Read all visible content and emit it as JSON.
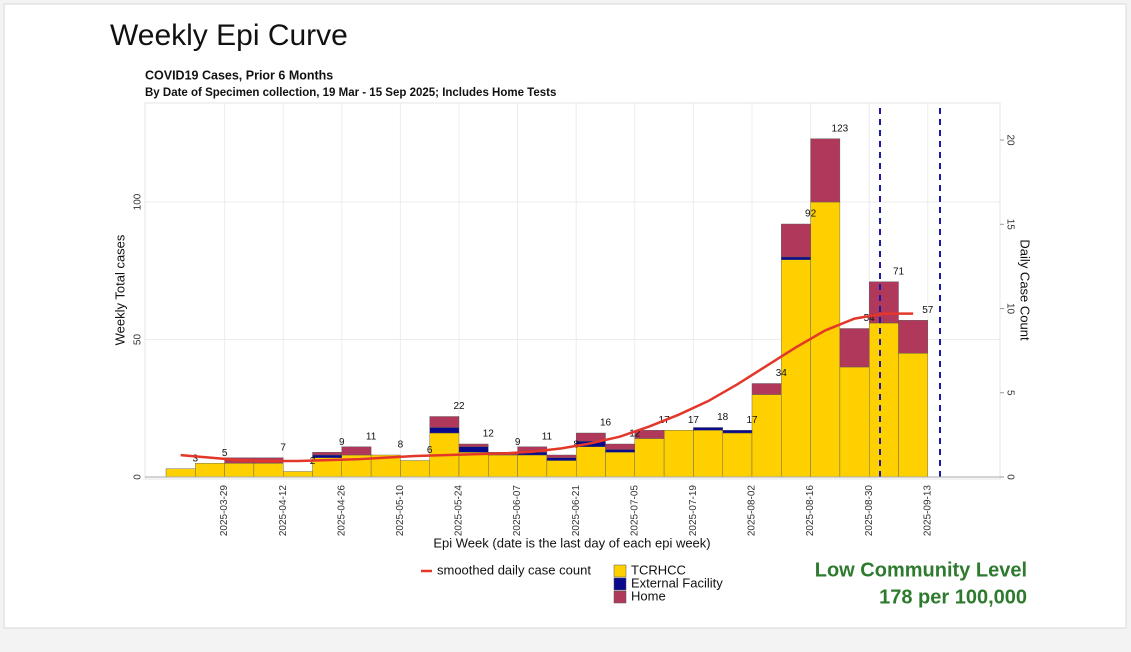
{
  "heading": "Weekly Epi Curve",
  "chart_data": {
    "type": "bar",
    "stacked": true,
    "title": "COVID19 Cases, Prior 6 Months",
    "subtitle": "By Date of Specimen collection, 19 Mar - 15 Sep 2025; Includes Home Tests",
    "x_label": "Epi Week (date is the last day of each epi week)",
    "y_label": "Weekly Total cases",
    "y2_label": "Daily Case Count",
    "categories": [
      null,
      "2025-03-29",
      null,
      "2025-04-12",
      null,
      "2025-04-26",
      null,
      "2025-05-10",
      null,
      "2025-05-24",
      null,
      "2025-06-07",
      null,
      "2025-06-21",
      null,
      "2025-07-05",
      null,
      "2025-07-19",
      null,
      "2025-08-02",
      null,
      "2025-08-16",
      null,
      "2025-08-30",
      null,
      "2025-09-13"
    ],
    "series": [
      {
        "name": "TCRHCC",
        "color": "#ffd000",
        "values": [
          3,
          5,
          5,
          5,
          2,
          7,
          8,
          8,
          6,
          16,
          9,
          8,
          8,
          6,
          11,
          9,
          14,
          17,
          17,
          16,
          30,
          79,
          100,
          40,
          56,
          45
        ]
      },
      {
        "name": "External Facility",
        "color": "#0a0a8c",
        "values": [
          0,
          0,
          0,
          0,
          0,
          1,
          0,
          0,
          0,
          2,
          2,
          0,
          1,
          1,
          2,
          1,
          0,
          0,
          1,
          1,
          0,
          1,
          0,
          0,
          0,
          0
        ]
      },
      {
        "name": "Home",
        "color": "#b0385a",
        "values": [
          0,
          0,
          2,
          2,
          0,
          1,
          3,
          0,
          0,
          4,
          1,
          1,
          2,
          1,
          3,
          2,
          3,
          0,
          0,
          0,
          4,
          12,
          23,
          14,
          15,
          12
        ]
      },
      {
        "name": "smoothed daily case count",
        "type": "line",
        "axis": "y2",
        "color": "#e3372a",
        "values": [
          1.3,
          1.15,
          1.0,
          0.95,
          0.95,
          1.0,
          1.05,
          1.15,
          1.25,
          1.3,
          1.35,
          1.4,
          1.5,
          1.7,
          2.0,
          2.4,
          3.0,
          3.7,
          4.5,
          5.5,
          6.6,
          7.7,
          8.7,
          9.4,
          9.7,
          9.7
        ]
      }
    ],
    "totals": [
      3,
      5,
      null,
      7,
      2,
      9,
      11,
      8,
      6,
      22,
      12,
      9,
      11,
      8,
      16,
      12,
      17,
      17,
      18,
      17,
      34,
      92,
      123,
      54,
      71,
      57
    ],
    "ylim": [
      0,
      136
    ],
    "yticks": [
      0,
      50,
      100
    ],
    "y2lim": [
      0,
      22.2
    ],
    "y2ticks": [
      0,
      5,
      10,
      15,
      20
    ],
    "grid": true
  },
  "status": {
    "level": "Low Community Level",
    "rate": "178 per 100,000"
  }
}
